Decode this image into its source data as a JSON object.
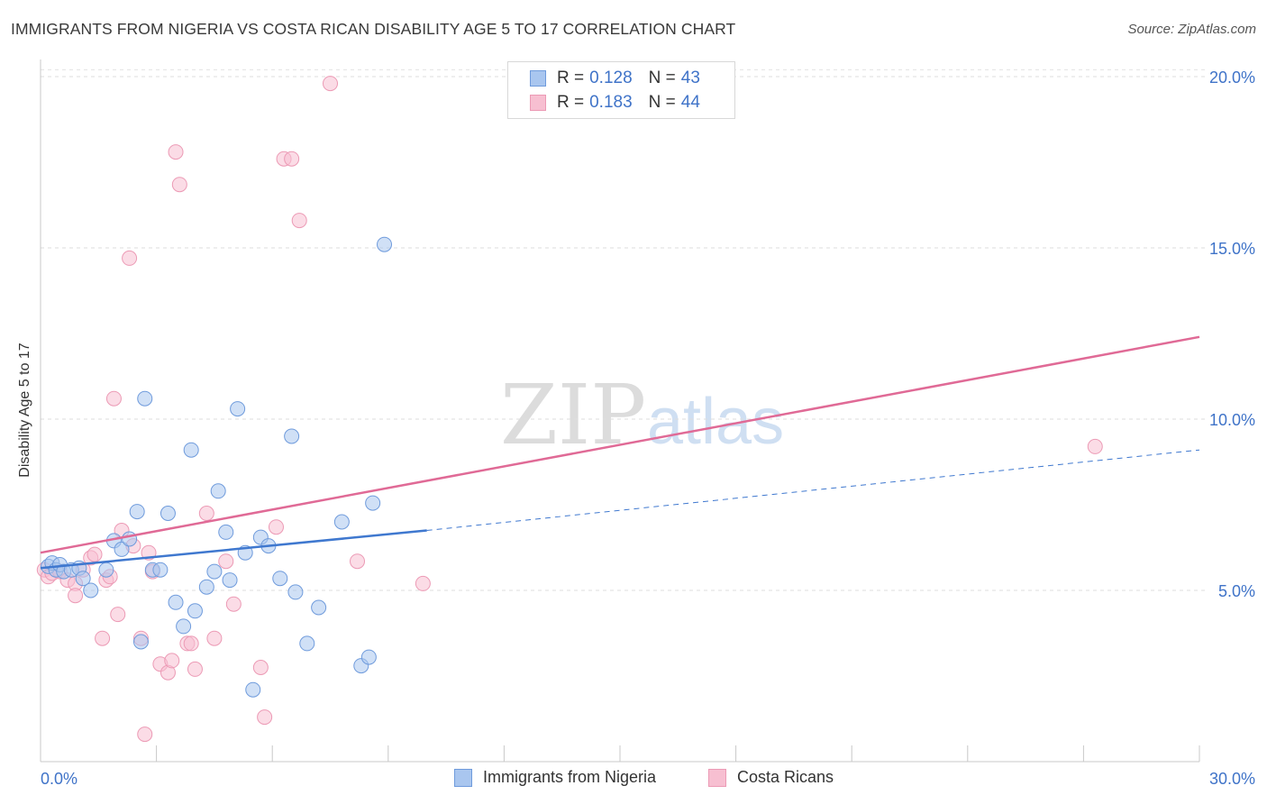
{
  "title": "IMMIGRANTS FROM NIGERIA VS COSTA RICAN DISABILITY AGE 5 TO 17 CORRELATION CHART",
  "source": "Source: ZipAtlas.com",
  "watermark": {
    "zip": "ZIP",
    "atlas": "atlas"
  },
  "legend": {
    "rows": [
      {
        "r_label": "R =",
        "r_value": "0.128",
        "n_label": "N =",
        "n_value": "43"
      },
      {
        "r_label": "R =",
        "r_value": "0.183",
        "n_label": "N =",
        "n_value": "44"
      }
    ]
  },
  "chart_data": {
    "type": "scatter",
    "title": "IMMIGRANTS FROM NIGERIA VS COSTA RICAN DISABILITY AGE 5 TO 17 CORRELATION CHART",
    "xlabel": "",
    "ylabel": "Disability Age 5 to 17",
    "xlim": [
      0,
      30
    ],
    "ylim": [
      0,
      20.5
    ],
    "x_ticks": [
      "0.0%",
      "30.0%"
    ],
    "y_ticks": [
      {
        "value": 5,
        "label": "5.0%"
      },
      {
        "value": 10,
        "label": "10.0%"
      },
      {
        "value": 15,
        "label": "15.0%"
      },
      {
        "value": 20,
        "label": "20.0%"
      }
    ],
    "grid": true,
    "legend_position": "top-center",
    "colors": {
      "nigeria_fill": "#a9c6ef",
      "nigeria_stroke": "#6f9bdc",
      "nigeria_line": "#3f78cf",
      "costa_fill": "#f7bfd1",
      "costa_stroke": "#ec9ab5",
      "costa_line": "#e06a96",
      "axis_text": "#3f73c8"
    },
    "series": [
      {
        "name": "Immigrants from Nigeria",
        "r": 0.128,
        "n": 43,
        "points": [
          [
            0.2,
            5.7
          ],
          [
            0.3,
            5.8
          ],
          [
            0.4,
            5.6
          ],
          [
            0.5,
            5.75
          ],
          [
            0.6,
            5.55
          ],
          [
            0.8,
            5.6
          ],
          [
            1.0,
            5.65
          ],
          [
            1.1,
            5.35
          ],
          [
            1.3,
            5.0
          ],
          [
            1.7,
            5.6
          ],
          [
            1.9,
            6.45
          ],
          [
            2.1,
            6.2
          ],
          [
            2.3,
            6.5
          ],
          [
            2.5,
            7.3
          ],
          [
            2.6,
            3.5
          ],
          [
            2.7,
            10.6
          ],
          [
            2.9,
            5.6
          ],
          [
            3.1,
            5.6
          ],
          [
            3.3,
            7.25
          ],
          [
            3.5,
            4.65
          ],
          [
            3.7,
            3.95
          ],
          [
            3.9,
            9.1
          ],
          [
            4.0,
            4.4
          ],
          [
            4.3,
            5.1
          ],
          [
            4.5,
            5.55
          ],
          [
            4.6,
            7.9
          ],
          [
            4.8,
            6.7
          ],
          [
            4.9,
            5.3
          ],
          [
            5.1,
            10.3
          ],
          [
            5.3,
            6.1
          ],
          [
            5.5,
            2.1
          ],
          [
            5.7,
            6.55
          ],
          [
            5.9,
            6.3
          ],
          [
            6.2,
            5.35
          ],
          [
            6.5,
            9.5
          ],
          [
            6.6,
            4.95
          ],
          [
            6.9,
            3.45
          ],
          [
            7.2,
            4.5
          ],
          [
            7.8,
            7.0
          ],
          [
            8.3,
            2.8
          ],
          [
            8.5,
            3.05
          ],
          [
            8.6,
            7.55
          ],
          [
            8.9,
            15.1
          ]
        ],
        "trend": {
          "x0": 0,
          "y0": 5.65,
          "x1": 10,
          "y1": 6.75,
          "dashed_to_x": 30,
          "dashed_to_y": 9.1
        }
      },
      {
        "name": "Costa Ricans",
        "r": 0.183,
        "n": 44,
        "points": [
          [
            0.1,
            5.6
          ],
          [
            0.2,
            5.4
          ],
          [
            0.3,
            5.5
          ],
          [
            0.5,
            5.55
          ],
          [
            0.7,
            5.3
          ],
          [
            0.9,
            5.2
          ],
          [
            0.9,
            4.85
          ],
          [
            1.1,
            5.6
          ],
          [
            1.3,
            5.95
          ],
          [
            1.4,
            6.05
          ],
          [
            1.6,
            3.6
          ],
          [
            1.7,
            5.3
          ],
          [
            1.8,
            5.4
          ],
          [
            1.9,
            10.6
          ],
          [
            2.0,
            4.3
          ],
          [
            2.1,
            6.75
          ],
          [
            2.3,
            14.7
          ],
          [
            2.4,
            6.3
          ],
          [
            2.6,
            3.6
          ],
          [
            2.7,
            0.8
          ],
          [
            2.8,
            6.1
          ],
          [
            2.9,
            5.55
          ],
          [
            3.1,
            2.85
          ],
          [
            3.3,
            2.6
          ],
          [
            3.4,
            2.95
          ],
          [
            3.5,
            17.8
          ],
          [
            3.6,
            16.85
          ],
          [
            3.8,
            3.45
          ],
          [
            3.9,
            3.45
          ],
          [
            4.0,
            2.7
          ],
          [
            4.3,
            7.25
          ],
          [
            4.5,
            3.6
          ],
          [
            4.8,
            5.85
          ],
          [
            5.0,
            4.6
          ],
          [
            5.7,
            2.75
          ],
          [
            5.8,
            1.3
          ],
          [
            6.1,
            6.85
          ],
          [
            6.3,
            17.6
          ],
          [
            6.5,
            17.6
          ],
          [
            6.7,
            15.8
          ],
          [
            7.5,
            19.8
          ],
          [
            8.2,
            5.85
          ],
          [
            9.9,
            5.2
          ],
          [
            27.3,
            9.2
          ]
        ],
        "trend": {
          "x0": 0,
          "y0": 6.1,
          "x1": 30,
          "y1": 12.4
        }
      }
    ]
  },
  "bottom_legend": [
    {
      "label": "Immigrants from Nigeria"
    },
    {
      "label": "Costa Ricans"
    }
  ]
}
